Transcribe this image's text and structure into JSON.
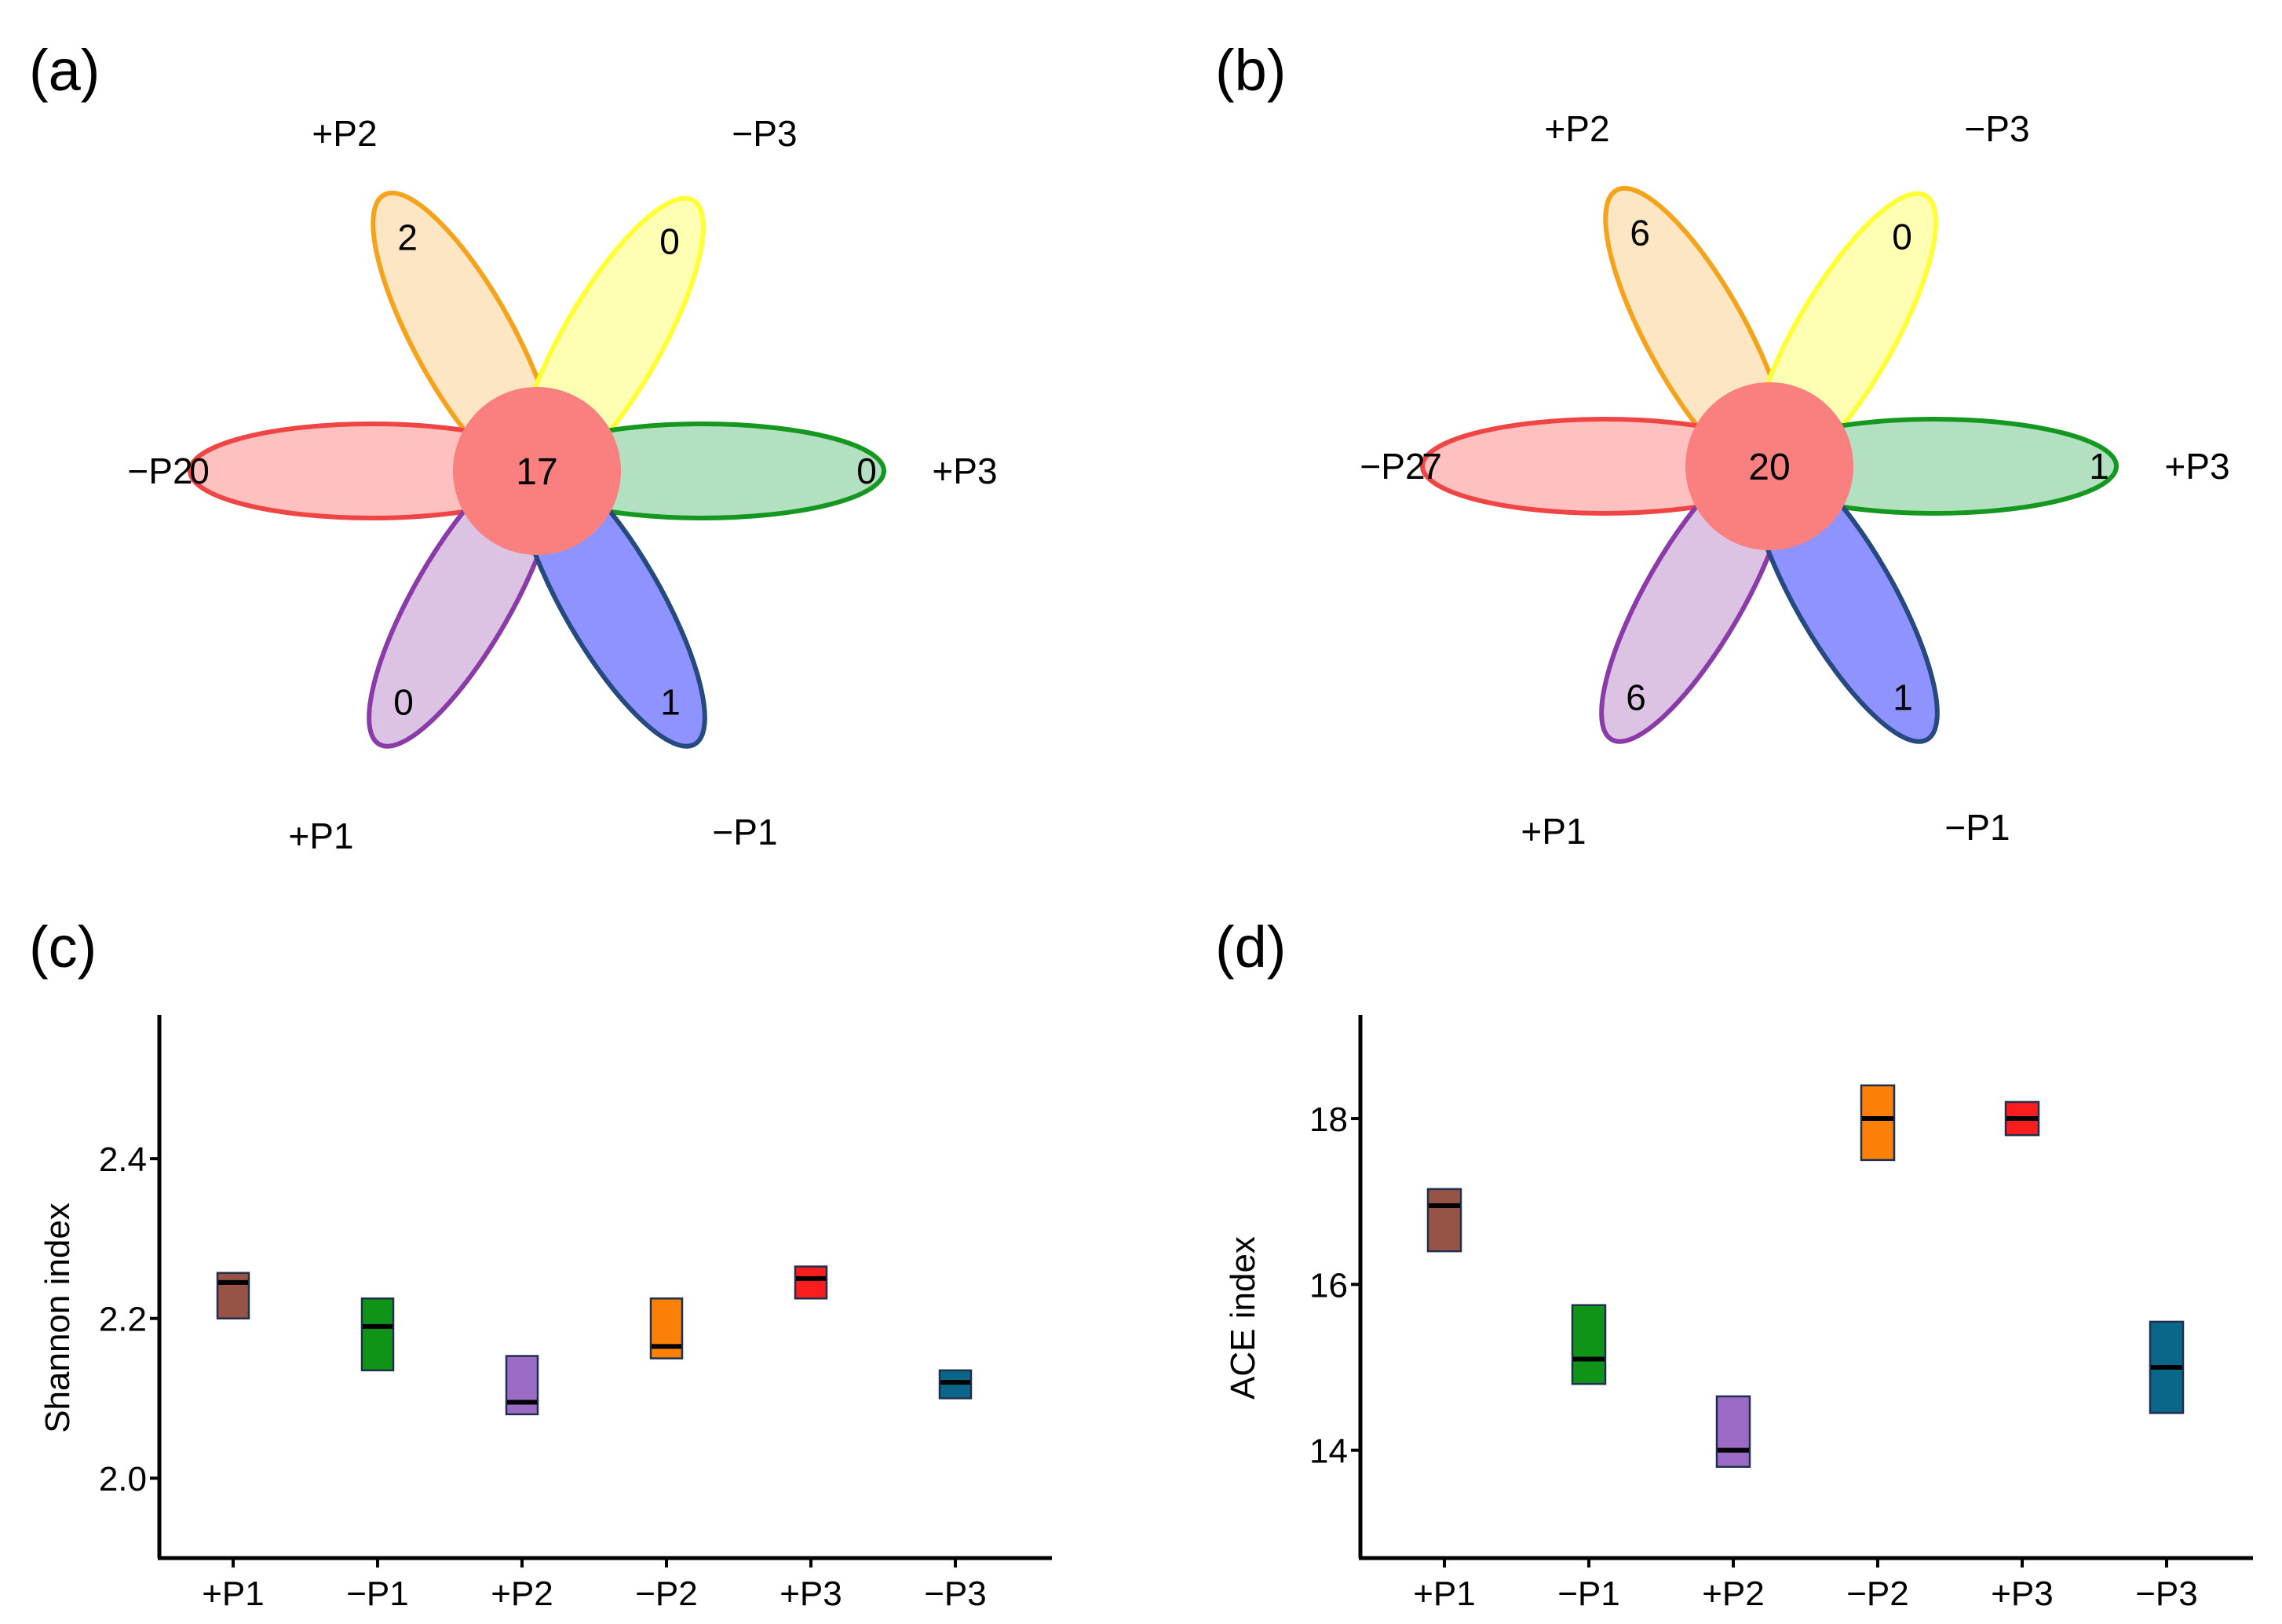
{
  "panels": [
    {
      "label": "(a)"
    },
    {
      "label": "(b)"
    },
    {
      "label": "(c)"
    },
    {
      "label": "(d)"
    }
  ],
  "flowers": [
    {
      "center": "17",
      "petals": [
        {
          "name": "+P2",
          "count": "2",
          "fill": "#fde6c4",
          "stroke": "#f5a31a"
        },
        {
          "name": "−P3",
          "count": "0",
          "fill": "#ffffb3",
          "stroke": "#ffff33"
        },
        {
          "name": "−P2",
          "count": "0",
          "fill": "#ffc0c0",
          "stroke": "#f04545"
        },
        {
          "name": "+P3",
          "count": "0",
          "fill": "#b2e0c0",
          "stroke": "#15981f"
        },
        {
          "name": "+P1",
          "count": "0",
          "fill": "#dcc3e3",
          "stroke": "#8a3ba8"
        },
        {
          "name": "−P1",
          "count": "1",
          "fill": "#8f93ff",
          "stroke": "#264a80"
        }
      ]
    },
    {
      "center": "20",
      "petals": [
        {
          "name": "+P2",
          "count": "6",
          "fill": "#fde6c4",
          "stroke": "#f5a31a"
        },
        {
          "name": "−P3",
          "count": "0",
          "fill": "#ffffb3",
          "stroke": "#ffff33"
        },
        {
          "name": "−P2",
          "count": "7",
          "fill": "#ffc0c0",
          "stroke": "#f04545"
        },
        {
          "name": "+P3",
          "count": "1",
          "fill": "#b2e0c0",
          "stroke": "#15981f"
        },
        {
          "name": "+P1",
          "count": "6",
          "fill": "#dcc3e3",
          "stroke": "#8a3ba8"
        },
        {
          "name": "−P1",
          "count": "1",
          "fill": "#8f93ff",
          "stroke": "#264a80"
        }
      ]
    }
  ],
  "colors": {
    "center": "#fa8080",
    "box_stroke": "#1f2f4f",
    "median": "#000000"
  },
  "chart_data": [
    {
      "type": "venn-flower",
      "title": "(a)",
      "core": 17,
      "sets": [
        "+P2",
        "−P3",
        "−P2",
        "+P3",
        "+P1",
        "−P1"
      ],
      "unique": [
        2,
        0,
        0,
        0,
        0,
        1
      ]
    },
    {
      "type": "venn-flower",
      "title": "(b)",
      "core": 20,
      "sets": [
        "+P2",
        "−P3",
        "−P2",
        "+P3",
        "+P1",
        "−P1"
      ],
      "unique": [
        6,
        0,
        7,
        1,
        6,
        1
      ]
    },
    {
      "type": "box",
      "title": "(c)",
      "xlabel": "",
      "ylabel": "Shannon index",
      "ylim": [
        1.9,
        2.58
      ],
      "yticks": [
        "2.0",
        "2.2",
        "2.4"
      ],
      "categories": [
        "+P1",
        "−P1",
        "+P2",
        "−P2",
        "+P3",
        "−P3"
      ],
      "colors": [
        "#985347",
        "#0f9417",
        "#9b6bc6",
        "#fb8008",
        "#fa1d1d",
        "#0b6789"
      ],
      "boxes": [
        {
          "q1": 2.2,
          "median": 2.245,
          "q3": 2.257
        },
        {
          "q1": 2.135,
          "median": 2.19,
          "q3": 2.225
        },
        {
          "q1": 2.08,
          "median": 2.095,
          "q3": 2.153
        },
        {
          "q1": 2.15,
          "median": 2.165,
          "q3": 2.225
        },
        {
          "q1": 2.225,
          "median": 2.25,
          "q3": 2.265
        },
        {
          "q1": 2.1,
          "median": 2.12,
          "q3": 2.135
        }
      ]
    },
    {
      "type": "box",
      "title": "(d)",
      "xlabel": "",
      "ylabel": "ACE index",
      "ylim": [
        12.7,
        19.25
      ],
      "yticks": [
        "14",
        "16",
        "18"
      ],
      "categories": [
        "+P1",
        "−P1",
        "+P2",
        "−P2",
        "+P3",
        "−P3"
      ],
      "colors": [
        "#985347",
        "#0f9417",
        "#9b6bc6",
        "#fb8008",
        "#fa1d1d",
        "#0b6789"
      ],
      "boxes": [
        {
          "q1": 16.4,
          "median": 16.95,
          "q3": 17.15
        },
        {
          "q1": 14.8,
          "median": 15.1,
          "q3": 15.75
        },
        {
          "q1": 13.8,
          "median": 14.0,
          "q3": 14.65
        },
        {
          "q1": 17.5,
          "median": 18.0,
          "q3": 18.4
        },
        {
          "q1": 17.8,
          "median": 18.0,
          "q3": 18.2
        },
        {
          "q1": 14.45,
          "median": 15.0,
          "q3": 15.55
        }
      ]
    }
  ]
}
